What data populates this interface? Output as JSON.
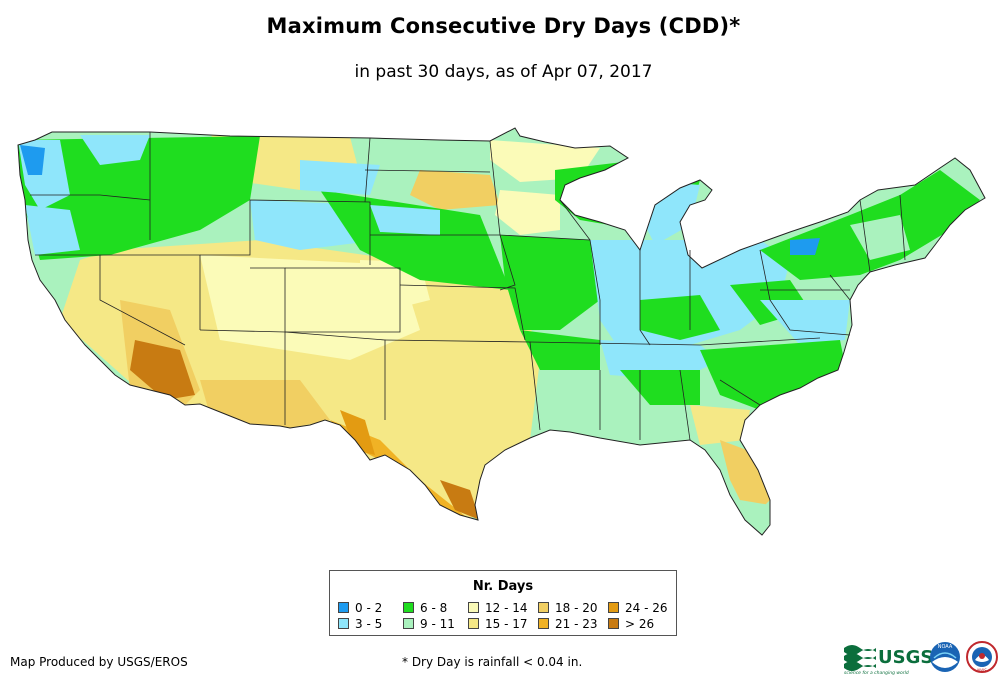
{
  "title": "Maximum Consecutive Dry Days (CDD)*",
  "subtitle": "in past 30 days, as of Apr 07, 2017",
  "legend": {
    "title": "Nr. Days",
    "items": [
      {
        "label": "0 - 2",
        "color": "#1e9bef"
      },
      {
        "label": "3 - 5",
        "color": "#8fe6fb"
      },
      {
        "label": "6 - 8",
        "color": "#1fdd1f"
      },
      {
        "label": "9 - 11",
        "color": "#aaf2be"
      },
      {
        "label": "12 - 14",
        "color": "#fbfbb8"
      },
      {
        "label": "15 - 17",
        "color": "#f5e886"
      },
      {
        "label": "18 - 20",
        "color": "#f1cf62"
      },
      {
        "label": "21 - 23",
        "color": "#f0b225"
      },
      {
        "label": "24 - 26",
        "color": "#e39b12"
      },
      {
        "label": "> 26",
        "color": "#c87b12"
      }
    ]
  },
  "footer": {
    "producer": "Map Produced by USGS/EROS",
    "note": "* Dry Day is rainfall < 0.04 in."
  },
  "logos": {
    "usgs_text": "USGS",
    "usgs_tagline": "science for a changing world",
    "noaa_text": "NOAA",
    "nws_text": "NWS"
  }
}
